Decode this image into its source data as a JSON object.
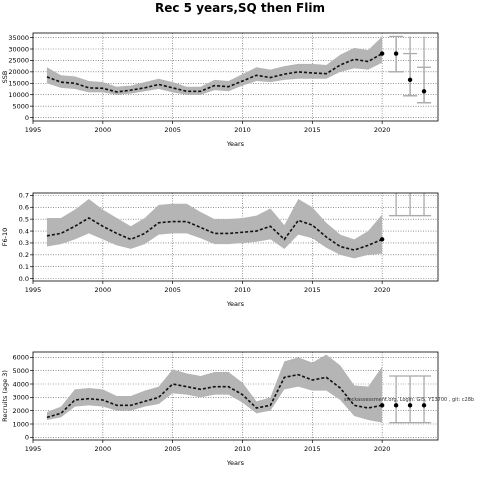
{
  "title": "Rec 5 years,SQ then Flim",
  "chart_data": [
    {
      "type": "line",
      "name": "ssb",
      "ylabel": "SSB",
      "xlabel": "Years",
      "xlim": [
        1995,
        2024
      ],
      "ylim": [
        -1500,
        37000
      ],
      "xticks": [
        1995,
        2000,
        2005,
        2010,
        2015,
        2020
      ],
      "yticks": [
        0,
        5000,
        10000,
        15000,
        20000,
        25000,
        30000,
        35000
      ],
      "x": [
        1996,
        1997,
        1998,
        1999,
        2000,
        2001,
        2002,
        2003,
        2004,
        2005,
        2006,
        2007,
        2008,
        2009,
        2010,
        2011,
        2012,
        2013,
        2014,
        2015,
        2016,
        2017,
        2018,
        2019,
        2020
      ],
      "median": [
        17800,
        15500,
        15000,
        13000,
        12800,
        11200,
        12000,
        13000,
        14500,
        13000,
        11500,
        11500,
        14000,
        13500,
        16000,
        18500,
        17500,
        19000,
        20000,
        19500,
        19200,
        23000,
        25500,
        24500,
        28000
      ],
      "lower": [
        15000,
        13000,
        12500,
        11000,
        11000,
        10000,
        10500,
        11500,
        12500,
        11000,
        10000,
        10000,
        12000,
        11500,
        14000,
        16000,
        15500,
        16500,
        17000,
        17000,
        17000,
        20000,
        21500,
        21000,
        24000
      ],
      "upper": [
        22000,
        18500,
        18000,
        16000,
        15500,
        13500,
        14000,
        15500,
        17000,
        15500,
        13500,
        13500,
        16500,
        16000,
        19000,
        22000,
        21000,
        22500,
        23500,
        23500,
        23000,
        27500,
        30500,
        29500,
        35500
      ],
      "proj_x": [
        2021,
        2022,
        2023
      ],
      "proj_median": [
        28000,
        16500,
        11500
      ],
      "proj_lower": [
        20000,
        9500,
        6500
      ],
      "proj_upper": [
        35500,
        28000,
        22000
      ],
      "ref_hi": 35500,
      "ref_lo": [
        20000,
        9500,
        6500
      ]
    },
    {
      "type": "line",
      "name": "f",
      "ylabel": "F6-10",
      "xlabel": "Years",
      "xlim": [
        1995,
        2024
      ],
      "ylim": [
        -0.02,
        0.72
      ],
      "xticks": [
        1995,
        2000,
        2005,
        2010,
        2015,
        2020
      ],
      "yticks": [
        0.0,
        0.1,
        0.2,
        0.3,
        0.4,
        0.5,
        0.6,
        0.7
      ],
      "x": [
        1996,
        1997,
        1998,
        1999,
        2000,
        2001,
        2002,
        2003,
        2004,
        2005,
        2006,
        2007,
        2008,
        2009,
        2010,
        2011,
        2012,
        2013,
        2014,
        2015,
        2016,
        2017,
        2018,
        2019,
        2020
      ],
      "median": [
        0.36,
        0.38,
        0.44,
        0.51,
        0.44,
        0.38,
        0.33,
        0.38,
        0.47,
        0.48,
        0.48,
        0.43,
        0.38,
        0.38,
        0.39,
        0.4,
        0.44,
        0.33,
        0.49,
        0.45,
        0.35,
        0.27,
        0.24,
        0.28,
        0.33
      ],
      "lower": [
        0.27,
        0.29,
        0.33,
        0.38,
        0.33,
        0.28,
        0.25,
        0.29,
        0.37,
        0.38,
        0.38,
        0.34,
        0.29,
        0.29,
        0.3,
        0.31,
        0.33,
        0.25,
        0.37,
        0.34,
        0.26,
        0.2,
        0.17,
        0.2,
        0.21
      ],
      "upper": [
        0.51,
        0.51,
        0.58,
        0.67,
        0.58,
        0.51,
        0.44,
        0.51,
        0.62,
        0.63,
        0.63,
        0.56,
        0.5,
        0.5,
        0.51,
        0.53,
        0.59,
        0.45,
        0.67,
        0.6,
        0.47,
        0.37,
        0.33,
        0.4,
        0.54
      ],
      "proj_x": [
        2021,
        2022,
        2023
      ],
      "ref_hi": 0.72,
      "ref_lo": [
        0.53,
        0.53,
        0.53
      ]
    },
    {
      "type": "line",
      "name": "rec",
      "ylabel": "Recruits (age 3)",
      "xlabel": "Years",
      "xlim": [
        1995,
        2024
      ],
      "ylim": [
        -200,
        6400
      ],
      "xticks": [
        1995,
        2000,
        2005,
        2010,
        2015,
        2020
      ],
      "yticks": [
        0,
        1000,
        2000,
        3000,
        4000,
        5000,
        6000
      ],
      "x": [
        1996,
        1997,
        1998,
        1999,
        2000,
        2001,
        2002,
        2003,
        2004,
        2005,
        2006,
        2007,
        2008,
        2009,
        2010,
        2011,
        2012,
        2013,
        2014,
        2015,
        2016,
        2017,
        2018,
        2019,
        2020
      ],
      "median": [
        1500,
        1800,
        2800,
        2900,
        2800,
        2400,
        2400,
        2700,
        3000,
        4000,
        3800,
        3600,
        3800,
        3800,
        3200,
        2200,
        2400,
        4500,
        4700,
        4300,
        4500,
        3700,
        2400,
        2200,
        2400
      ],
      "lower": [
        1300,
        1500,
        2300,
        2400,
        2300,
        2000,
        2000,
        2300,
        2500,
        3300,
        3200,
        3000,
        3200,
        3200,
        2600,
        1800,
        2000,
        3600,
        3800,
        3500,
        3500,
        2800,
        1600,
        1300,
        1100
      ],
      "upper": [
        1900,
        2300,
        3600,
        3700,
        3600,
        3100,
        3100,
        3500,
        3800,
        5100,
        4800,
        4600,
        4900,
        4900,
        4100,
        2700,
        3000,
        5700,
        6000,
        5600,
        6200,
        5400,
        3900,
        3800,
        5300
      ],
      "proj_x": [
        2021,
        2022,
        2023
      ],
      "proj_median": [
        2400,
        2400,
        2400
      ],
      "proj_lower": [
        1100,
        1100,
        1100
      ],
      "proj_upper": [
        4600,
        4600,
        4600
      ],
      "annotation": "stockassessment.org, Login: GIS, Y13700 , git: c28b"
    }
  ]
}
